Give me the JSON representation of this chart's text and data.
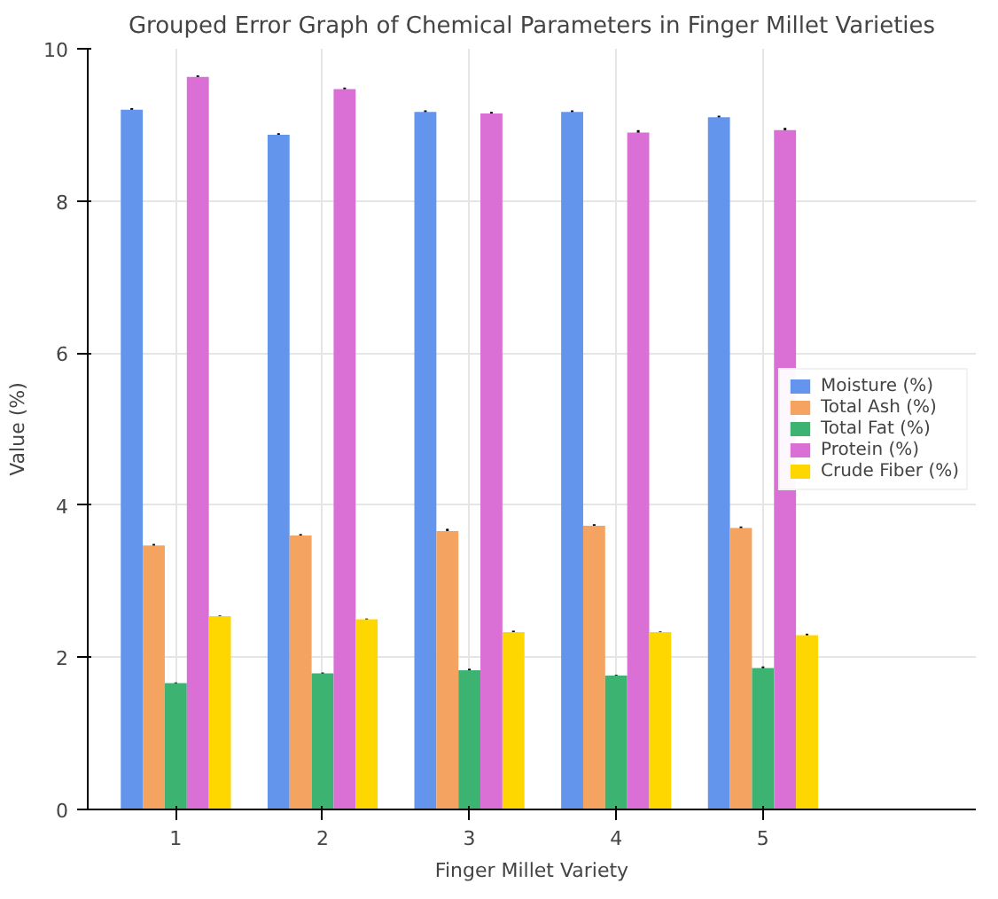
{
  "chart_data": {
    "type": "bar",
    "title": "Grouped Error Graph of Chemical Parameters in Finger Millet Varieties",
    "xlabel": "Finger Millet Variety",
    "ylabel": "Value (%)",
    "x": [
      1,
      2,
      3,
      4,
      5
    ],
    "xlim": [
      0.4,
      6.45
    ],
    "xticks": [
      1,
      2,
      3,
      4,
      5
    ],
    "ylim": [
      0,
      10
    ],
    "yticks": [
      0,
      2,
      4,
      6,
      8,
      10
    ],
    "grid": true,
    "legend": "right",
    "series": [
      {
        "name": "Moisture (%)",
        "color": "#6495ed",
        "values": [
          9.2,
          8.87,
          9.17,
          9.17,
          9.1
        ],
        "errors": [
          0.02,
          0.02,
          0.02,
          0.02,
          0.02
        ]
      },
      {
        "name": "Total Ash (%)",
        "color": "#f4a460",
        "values": [
          3.47,
          3.6,
          3.66,
          3.73,
          3.7
        ],
        "errors": [
          0.02,
          0.02,
          0.03,
          0.02,
          0.02
        ]
      },
      {
        "name": "Total Fat (%)",
        "color": "#3cb371",
        "values": [
          1.66,
          1.79,
          1.83,
          1.76,
          1.86
        ],
        "errors": [
          0.01,
          0.01,
          0.02,
          0.01,
          0.02
        ]
      },
      {
        "name": "Protein (%)",
        "color": "#da70d6",
        "values": [
          9.63,
          9.47,
          9.15,
          8.9,
          8.93
        ],
        "errors": [
          0.02,
          0.02,
          0.02,
          0.03,
          0.03
        ]
      },
      {
        "name": "Crude Fiber (%)",
        "color": "#ffd700",
        "values": [
          2.54,
          2.5,
          2.33,
          2.33,
          2.29
        ],
        "errors": [
          0.01,
          0.01,
          0.02,
          0.01,
          0.02
        ]
      }
    ]
  }
}
